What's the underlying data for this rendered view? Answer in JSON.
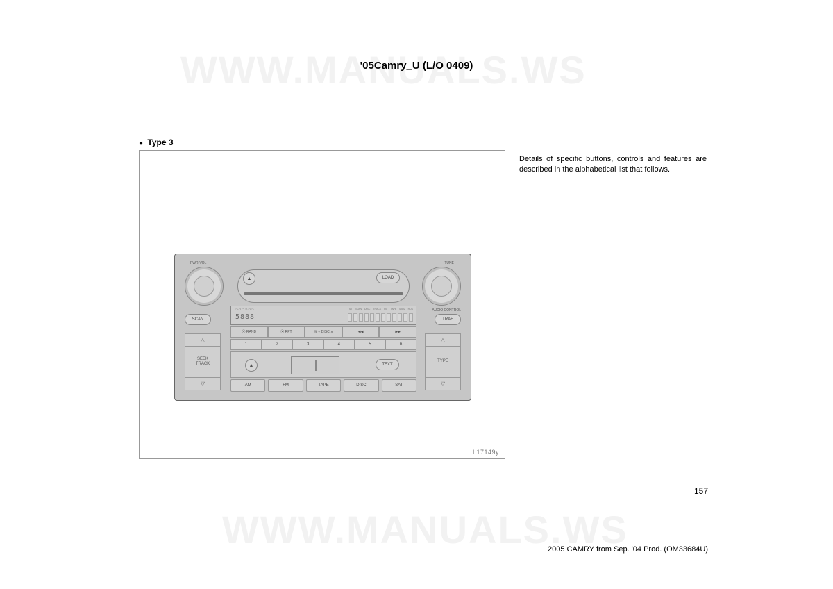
{
  "watermark": "WWW.MANUALS.WS",
  "header": "'05Camry_U (L/O 0409)",
  "type_label": "Type 3",
  "description": "Details of specific buttons, controls and features are described in the alphabetical list that follows.",
  "figure_id": "L17149y",
  "page_number": "157",
  "footer": "2005 CAMRY from Sep. '04 Prod. (OM33684U)",
  "radio": {
    "knob_left_label": "PWR·VOL",
    "knob_right_label": "TUNE",
    "audio_control_label": "AUDIO CONTROL",
    "load": "LOAD",
    "scan": "SCAN",
    "traf": "TRAF",
    "text_btn": "TEXT",
    "display_digits": "5888",
    "display_dots": "❍❍❍❍❍❍",
    "display_labels": [
      "ST",
      "SCAN",
      "DISC",
      "TRACK",
      "FM",
      "TAPE",
      "MID2",
      "RDS"
    ],
    "mid_labels": [
      "⦿ RAND",
      "⦿ RPT",
      "⊟ ∨ DISC ∧",
      "◀◀",
      "▶▶"
    ],
    "presets": [
      "1",
      "2",
      "3",
      "4",
      "5",
      "6"
    ],
    "sources": [
      "AM",
      "FM",
      "TAPE",
      "DISC",
      "SAT"
    ],
    "seek_label_1": "SEEK",
    "seek_label_2": "TRACK",
    "type_label": "TYPE",
    "eject_glyph": "▲",
    "up_glyph": "△",
    "down_glyph": "▽"
  }
}
